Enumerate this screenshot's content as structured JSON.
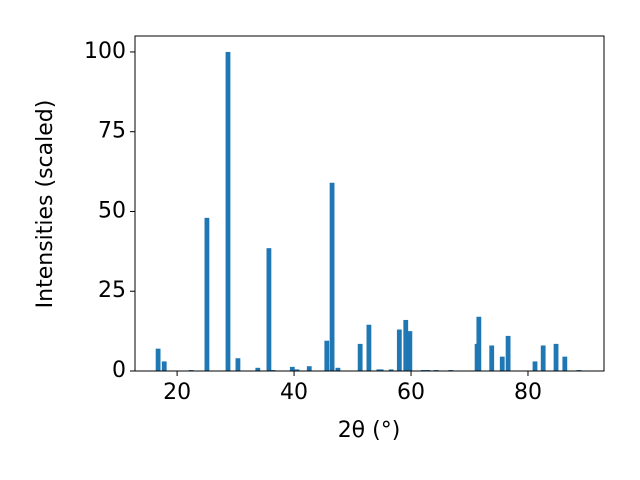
{
  "chart_data": {
    "type": "bar",
    "xlabel": "2θ (°)",
    "ylabel": "Intensities (scaled)",
    "color": "#1f77b4",
    "x": [
      16.75,
      17.8,
      22.4,
      25.1,
      28.7,
      30.4,
      33.8,
      35.7,
      36.4,
      39.7,
      40.5,
      42.6,
      45.6,
      46.5,
      47.5,
      51.3,
      52.8,
      54.5,
      54.9,
      56.6,
      58.0,
      59.1,
      59.8,
      62.1,
      62.9,
      64.3,
      66.8,
      71.3,
      71.6,
      73.8,
      75.6,
      76.6,
      81.2,
      82.6,
      84.8,
      86.3,
      88.7
    ],
    "values": [
      7,
      3,
      0.3,
      48,
      100,
      4,
      1,
      38.5,
      0.3,
      1.3,
      0.5,
      1.5,
      9.5,
      59,
      1,
      8.5,
      14.5,
      0.5,
      0.5,
      0.5,
      13,
      16,
      12.5,
      0.3,
      0.3,
      0.3,
      0.3,
      8.5,
      17,
      8,
      4.5,
      11,
      3,
      8,
      8.5,
      4.5,
      0.3
    ],
    "xlim": [
      12.8,
      93.0
    ],
    "ylim": [
      0,
      105
    ],
    "xticks": [
      20,
      40,
      60,
      80
    ],
    "yticks": [
      0,
      25,
      50,
      75,
      100
    ]
  }
}
